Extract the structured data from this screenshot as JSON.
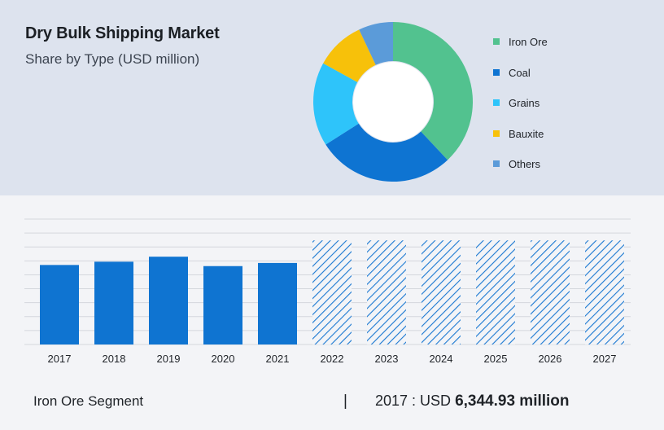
{
  "header": {
    "title": "Dry Bulk Shipping Market",
    "subtitle": "Share by Type (USD million)"
  },
  "colors": {
    "top_background": "#dde3ee",
    "page_background": "#f3f4f7",
    "bar_fill": "#0f74d1",
    "hatch": "#1a78d2",
    "grid": "#d4d7dd"
  },
  "chart_data": [
    {
      "type": "pie",
      "donut": true,
      "legend_position": "right",
      "categories": [
        "Iron Ore",
        "Coal",
        "Grains",
        "Bauxite",
        "Others"
      ],
      "values": [
        38,
        28,
        17,
        10,
        7
      ],
      "colors": [
        "#52c28f",
        "#0e74d2",
        "#2ec4fa",
        "#f7c10a",
        "#5b9bd9"
      ]
    },
    {
      "type": "bar",
      "categories": [
        "2017",
        "2018",
        "2019",
        "2020",
        "2021",
        "2022",
        "2023",
        "2024",
        "2025",
        "2026",
        "2027"
      ],
      "values": [
        6.34,
        6.6,
        7.0,
        6.25,
        6.5,
        8.3,
        8.3,
        8.3,
        8.3,
        8.3,
        8.3
      ],
      "forecast_from": "2022",
      "ylim": [
        0,
        10
      ],
      "grid": true
    }
  ],
  "footer": {
    "segment": "Iron Ore Segment",
    "separator": "|",
    "year_label": "2017 : USD ",
    "value": "6,344.93 million"
  }
}
